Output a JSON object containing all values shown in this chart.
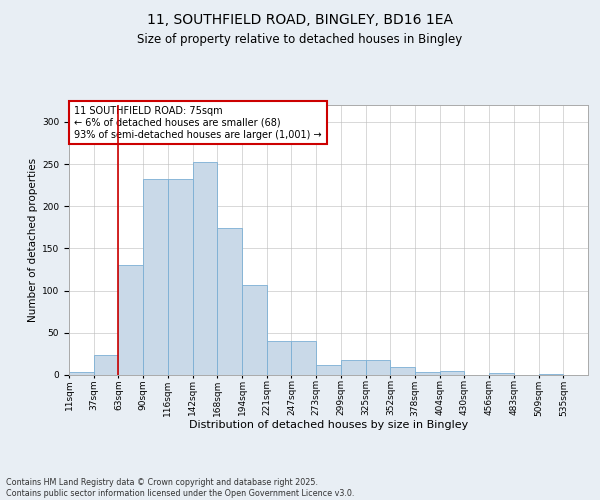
{
  "title_line1": "11, SOUTHFIELD ROAD, BINGLEY, BD16 1EA",
  "title_line2": "Size of property relative to detached houses in Bingley",
  "xlabel": "Distribution of detached houses by size in Bingley",
  "ylabel": "Number of detached properties",
  "annotation_line1": "11 SOUTHFIELD ROAD: 75sqm",
  "annotation_line2": "← 6% of detached houses are smaller (68)",
  "annotation_line3": "93% of semi-detached houses are larger (1,001) →",
  "bar_color": "#c9d9e8",
  "bar_edge_color": "#7bafd4",
  "vline_x": 2,
  "vline_color": "#cc0000",
  "categories": [
    "11sqm",
    "37sqm",
    "63sqm",
    "90sqm",
    "116sqm",
    "142sqm",
    "168sqm",
    "194sqm",
    "221sqm",
    "247sqm",
    "273sqm",
    "299sqm",
    "325sqm",
    "352sqm",
    "378sqm",
    "404sqm",
    "430sqm",
    "456sqm",
    "483sqm",
    "509sqm",
    "535sqm"
  ],
  "values": [
    4,
    24,
    130,
    232,
    232,
    252,
    174,
    107,
    40,
    40,
    12,
    18,
    18,
    9,
    3,
    5,
    0,
    2,
    0,
    1,
    0
  ],
  "ylim": [
    0,
    320
  ],
  "yticks": [
    0,
    50,
    100,
    150,
    200,
    250,
    300
  ],
  "background_color": "#e8eef4",
  "plot_bg_color": "#ffffff",
  "footer": "Contains HM Land Registry data © Crown copyright and database right 2025.\nContains public sector information licensed under the Open Government Licence v3.0.",
  "annotation_box_color": "#ffffff",
  "annotation_box_edge": "#cc0000",
  "grid_color": "#bbbbbb",
  "title_fontsize": 10,
  "subtitle_fontsize": 8.5,
  "ylabel_fontsize": 7.5,
  "xlabel_fontsize": 8,
  "tick_fontsize": 6.5,
  "annot_fontsize": 7
}
